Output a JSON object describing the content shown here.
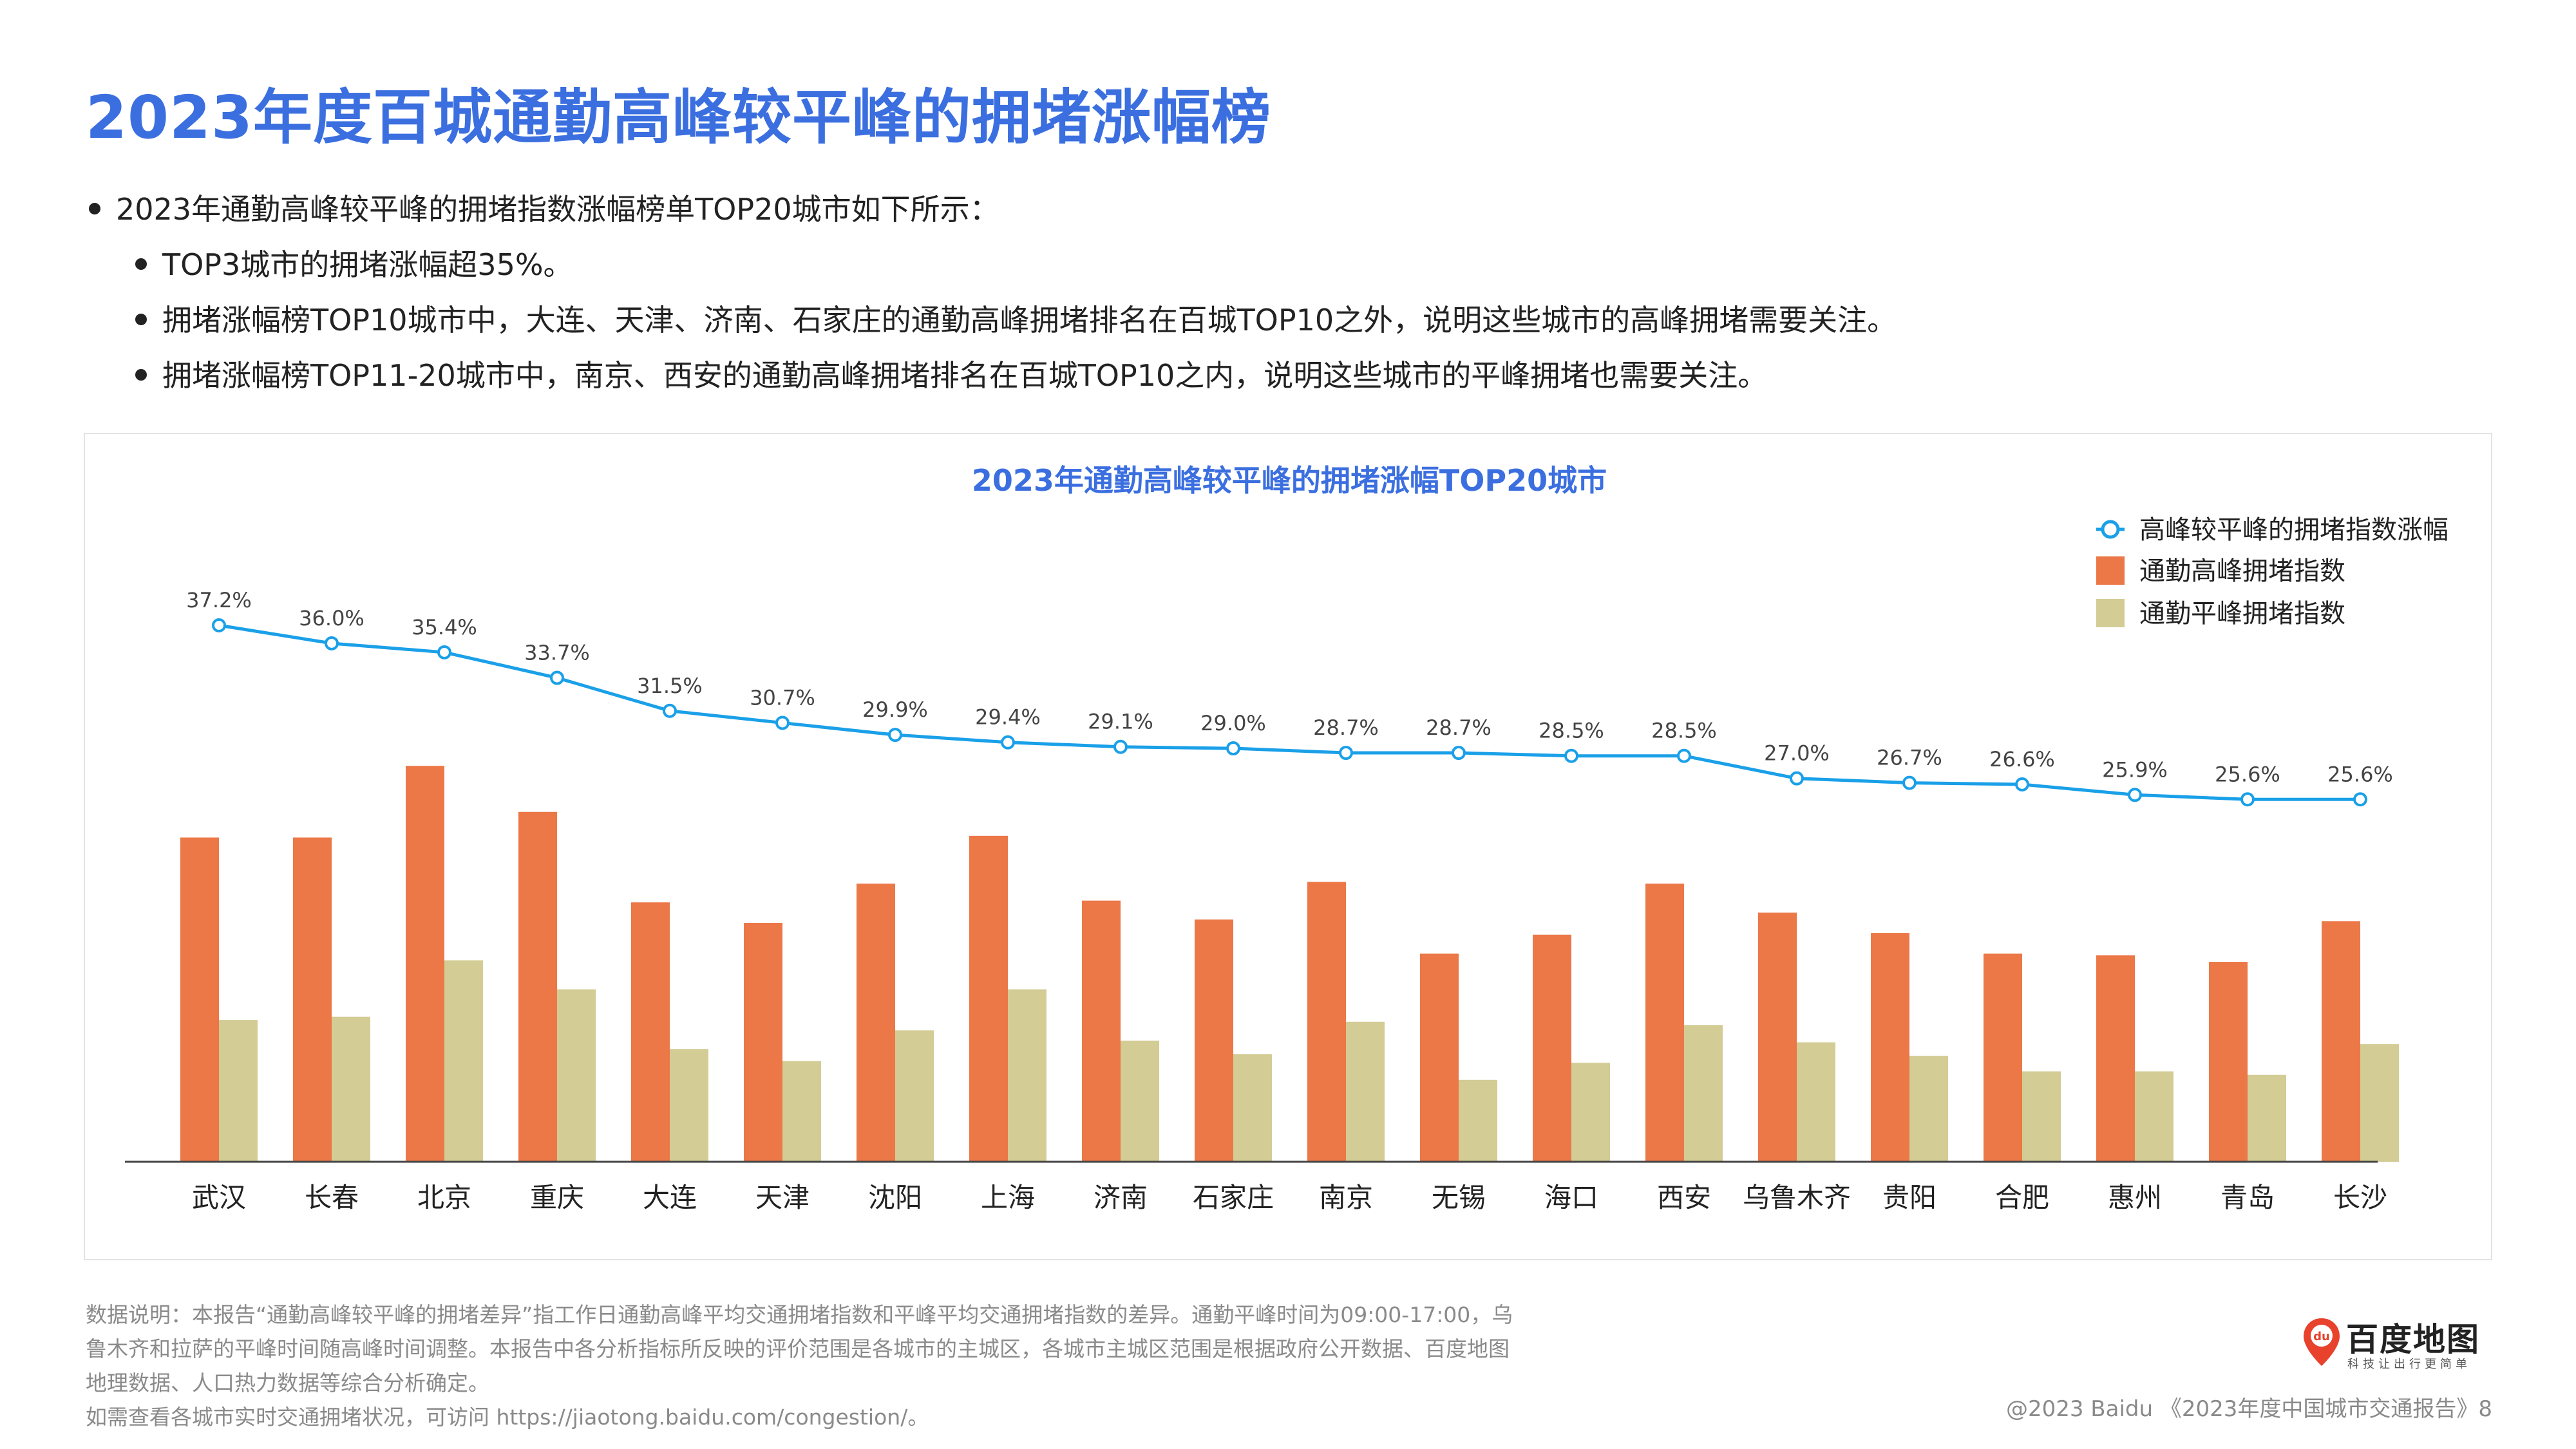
{
  "title": "2023年度百城通勤高峰较平峰的拥堵涨幅榜",
  "bullets": {
    "main": "2023年通勤高峰较平峰的拥堵指数涨幅榜单TOP20城市如下所示：",
    "sub1": "TOP3城市的拥堵涨幅超35%。",
    "sub2": "拥堵涨幅榜TOP10城市中，大连、天津、济南、石家庄的通勤高峰拥堵排名在百城TOP10之外，说明这些城市的高峰拥堵需要关注。",
    "sub3": "拥堵涨幅榜TOP11-20城市中，南京、西安的通勤高峰拥堵排名在百城TOP10之内，说明这些城市的平峰拥堵也需要关注。"
  },
  "chart_data": {
    "type": "bar",
    "title": "2023年通勤高峰较平峰的拥堵涨幅TOP20城市",
    "categories": [
      "武汉",
      "长春",
      "北京",
      "重庆",
      "大连",
      "天津",
      "沈阳",
      "上海",
      "济南",
      "石家庄",
      "南京",
      "无锡",
      "海口",
      "西安",
      "乌鲁木齐",
      "贵阳",
      "合肥",
      "惠州",
      "青岛",
      "长沙"
    ],
    "series": [
      {
        "name": "通勤高峰拥堵指数",
        "kind": "bar",
        "color": "#ec7747",
        "values": [
          1.9,
          1.9,
          2.32,
          2.05,
          1.52,
          1.4,
          1.63,
          1.91,
          1.53,
          1.42,
          1.64,
          1.22,
          1.33,
          1.63,
          1.46,
          1.34,
          1.22,
          1.21,
          1.17,
          1.41
        ]
      },
      {
        "name": "通勤平峰拥堵指数",
        "kind": "bar",
        "color": "#d3cc95",
        "values": [
          0.83,
          0.85,
          1.18,
          1.01,
          0.66,
          0.59,
          0.77,
          1.01,
          0.71,
          0.63,
          0.82,
          0.48,
          0.58,
          0.8,
          0.7,
          0.62,
          0.53,
          0.53,
          0.51,
          0.69
        ]
      },
      {
        "name": "高峰较平峰的拥堵指数涨幅",
        "kind": "line",
        "color": "#1aa0e8",
        "values": [
          37.2,
          36.0,
          35.4,
          33.7,
          31.5,
          30.7,
          29.9,
          29.4,
          29.1,
          29.0,
          28.7,
          28.7,
          28.5,
          28.5,
          27.0,
          26.7,
          26.6,
          25.9,
          25.6,
          25.6
        ],
        "labels": [
          "37.2%",
          "36.0%",
          "35.4%",
          "33.7%",
          "31.5%",
          "30.7%",
          "29.9%",
          "29.4%",
          "29.1%",
          "29.0%",
          "28.7%",
          "28.7%",
          "28.5%",
          "28.5%",
          "27.0%",
          "26.7%",
          "26.6%",
          "25.9%",
          "25.6%",
          "25.6%"
        ]
      }
    ],
    "legend_position": "top-right",
    "grid": false
  },
  "note": {
    "line1": "数据说明：本报告“通勤高峰较平峰的拥堵差异”指工作日通勤高峰平均交通拥堵指数和平峰平均交通拥堵指数的差异。通勤平峰时间为09:00-17:00，乌",
    "line2": "鲁木齐和拉萨的平峰时间随高峰时间调整。本报告中各分析指标所反映的评价范围是各城市的主城区，各城市主城区范围是根据政府公开数据、百度地图",
    "line3": "地理数据、人口热力数据等综合分析确定。",
    "line4": "如需查看各城市实时交通拥堵状况，可访问 https://jiaotong.baidu.com/congestion/。"
  },
  "logo": {
    "mark_text": "du",
    "word": "百度地图",
    "slogan": "科技让出行更简单"
  },
  "footer": "@2023 Baidu 《2023年度中国城市交通报告》8",
  "colors": {
    "title": "#3b6fe0",
    "bar_peak": "#ec7747",
    "bar_offpeak": "#d3cc95",
    "line": "#1aa0e8",
    "logo_red": "#e8412c"
  }
}
